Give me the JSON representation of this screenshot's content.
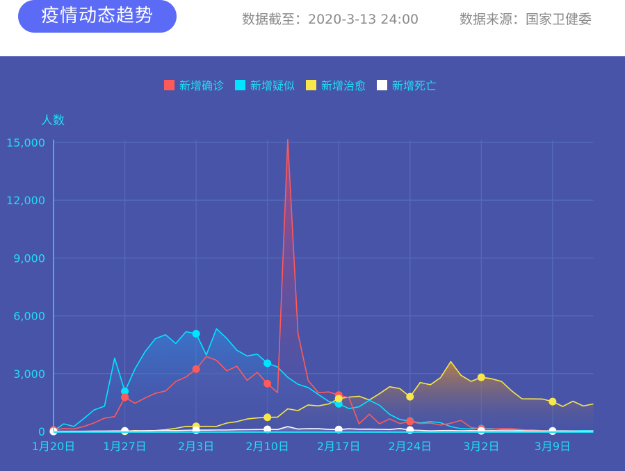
{
  "header": {
    "title": "疫情动态趋势",
    "data_as_of": "数据截至：2020-3-13 24:00",
    "data_source": "数据来源：国家卫健委"
  },
  "colors": {
    "header_pill": "#5b6bf5",
    "chart_bg": "#4754a8",
    "axis_text": "#22dcf5",
    "grid": "#5468b8"
  },
  "legend": {
    "items": [
      {
        "label": "新增确诊",
        "color": "#ff5a5a"
      },
      {
        "label": "新增疑似",
        "color": "#00e5ff"
      },
      {
        "label": "新增治愈",
        "color": "#f8e74a"
      },
      {
        "label": "新增死亡",
        "color": "#ffffff"
      }
    ]
  },
  "chart_data": {
    "type": "area",
    "title": "疫情动态趋势",
    "xlabel": "",
    "ylabel": "人数",
    "ylim": [
      0,
      15000
    ],
    "y_ticks": [
      0,
      3000,
      6000,
      9000,
      12000,
      15000
    ],
    "y_tick_labels": [
      "0",
      "3,000",
      "6,000",
      "9,000",
      "12,000",
      "15,000"
    ],
    "x_tick_labels": [
      "1月20日",
      "1月27日",
      "2月3日",
      "2月10日",
      "2月17日",
      "2月24日",
      "3月2日",
      "3月9日"
    ],
    "x_tick_interval_days": 7,
    "grid": true,
    "legend_position": "top",
    "start_date": "1月20日",
    "end_date": "3月13日",
    "categories": [
      "1/20",
      "1/21",
      "1/22",
      "1/23",
      "1/24",
      "1/25",
      "1/26",
      "1/27",
      "1/28",
      "1/29",
      "1/30",
      "1/31",
      "2/1",
      "2/2",
      "2/3",
      "2/4",
      "2/5",
      "2/6",
      "2/7",
      "2/8",
      "2/9",
      "2/10",
      "2/11",
      "2/12",
      "2/13",
      "2/14",
      "2/15",
      "2/16",
      "2/17",
      "2/18",
      "2/19",
      "2/20",
      "2/21",
      "2/22",
      "2/23",
      "2/24",
      "2/25",
      "2/26",
      "2/27",
      "2/28",
      "2/29",
      "3/1",
      "3/2",
      "3/3",
      "3/4",
      "3/5",
      "3/6",
      "3/7",
      "3/8",
      "3/9",
      "3/10",
      "3/11",
      "3/12",
      "3/13"
    ],
    "series": [
      {
        "name": "新增确诊",
        "color": "#ff5a5a",
        "values": [
          77,
          149,
          131,
          259,
          444,
          688,
          769,
          1771,
          1459,
          1737,
          1981,
          2099,
          2589,
          2825,
          3235,
          3884,
          3694,
          3143,
          3385,
          2652,
          3062,
          2478,
          2015,
          15152,
          5090,
          2641,
          2008,
          2048,
          1886,
          1749,
          394,
          889,
          397,
          648,
          409,
          508,
          406,
          433,
          327,
          427,
          573,
          202,
          125,
          119,
          139,
          143,
          99,
          44,
          40,
          19,
          24,
          15,
          8,
          11
        ]
      },
      {
        "name": "新增疑似",
        "color": "#00e5ff",
        "values": [
          27,
          392,
          257,
          680,
          1118,
          1309,
          3806,
          2077,
          3248,
          4148,
          4812,
          5019,
          4562,
          5173,
          5072,
          3971,
          5328,
          4833,
          4214,
          3916,
          4008,
          3536,
          3342,
          2807,
          2450,
          2277,
          1918,
          1563,
          1432,
          1185,
          1277,
          1614,
          1361,
          882,
          620,
          530,
          439,
          508,
          452,
          248,
          141,
          129,
          143,
          143,
          102,
          99,
          70,
          67,
          39,
          36,
          31,
          33,
          45,
          33
        ]
      },
      {
        "name": "新增治愈",
        "color": "#f8e74a",
        "values": [
          0,
          0,
          4,
          3,
          6,
          11,
          2,
          9,
          43,
          21,
          47,
          85,
          157,
          262,
          261,
          262,
          261,
          431,
          510,
          644,
          698,
          730,
          744,
          1171,
          1081,
          1373,
          1323,
          1425,
          1701,
          1779,
          1824,
          1629,
          1957,
          2317,
          2221,
          1800,
          2539,
          2424,
          2794,
          3622,
          2912,
          2595,
          2809,
          2736,
          2589,
          2095,
          1691,
          1688,
          1681,
          1547,
          1293,
          1568,
          1320,
          1425
        ]
      },
      {
        "name": "新增死亡",
        "color": "#ffffff",
        "values": [
          0,
          3,
          8,
          8,
          16,
          15,
          24,
          26,
          26,
          38,
          43,
          46,
          45,
          57,
          64,
          65,
          73,
          73,
          86,
          89,
          97,
          108,
          97,
          254,
          121,
          143,
          142,
          105,
          98,
          136,
          114,
          118,
          109,
          97,
          150,
          71,
          52,
          29,
          44,
          47,
          35,
          42,
          31,
          38,
          31,
          30,
          28,
          27,
          22,
          17,
          22,
          11,
          7,
          13
        ]
      }
    ]
  }
}
